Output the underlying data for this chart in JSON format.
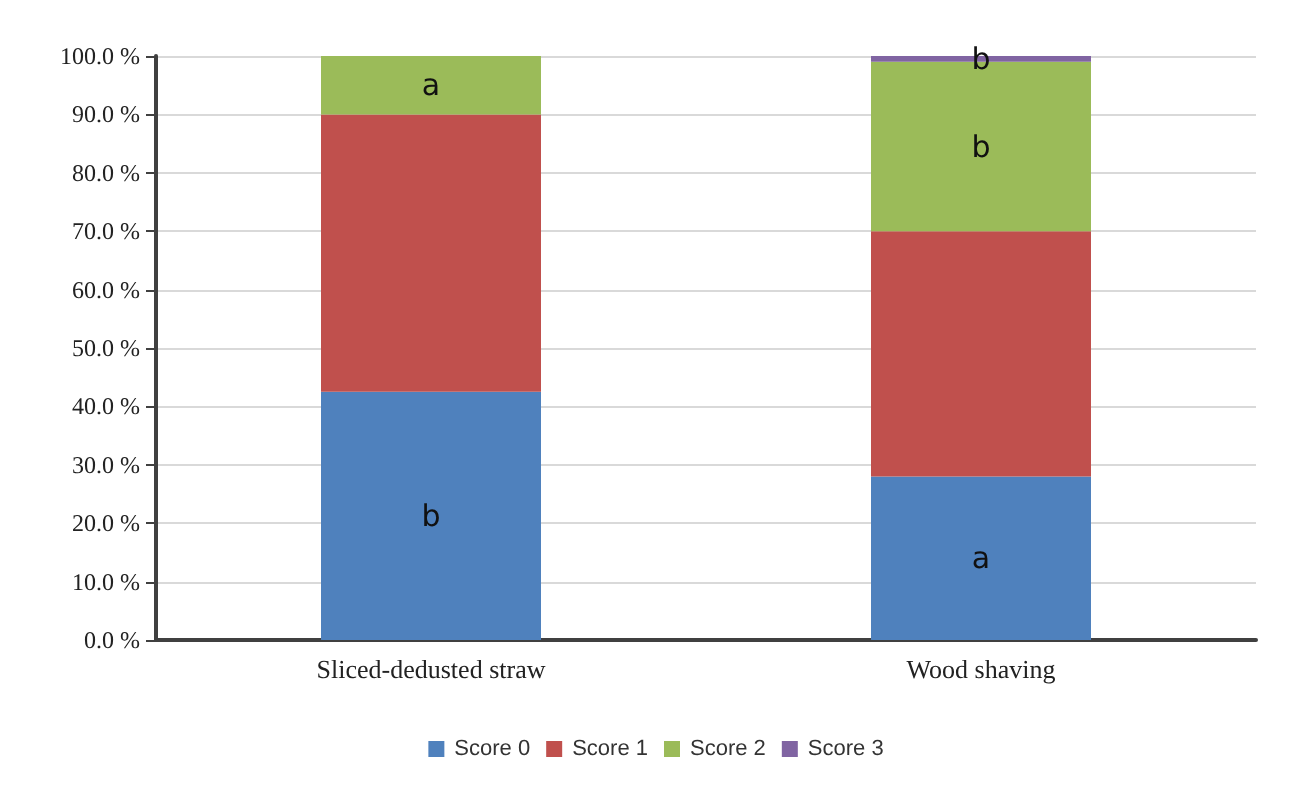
{
  "chart_data": {
    "type": "bar",
    "stacked": true,
    "categories": [
      "Sliced-dedusted straw",
      "Wood shaving"
    ],
    "series": [
      {
        "name": "Score 0",
        "color": "#4f81bd",
        "values": [
          42.5,
          28
        ],
        "value_labels": [
          "b",
          "a"
        ]
      },
      {
        "name": "Score 1",
        "color": "#c0504d",
        "values": [
          47.5,
          42
        ],
        "value_labels": [
          null,
          null
        ]
      },
      {
        "name": "Score 2",
        "color": "#9bbb59",
        "values": [
          10,
          29
        ],
        "value_labels": [
          "a",
          "b"
        ]
      },
      {
        "name": "Score 3",
        "color": "#8064a2",
        "values": [
          0,
          1
        ],
        "value_labels": [
          null,
          "b"
        ]
      }
    ],
    "ylim": [
      0,
      100
    ],
    "yticks": [
      {
        "value": 0,
        "label": "0.0 %"
      },
      {
        "value": 10,
        "label": "10.0 %"
      },
      {
        "value": 20,
        "label": "20.0 %"
      },
      {
        "value": 30,
        "label": "30.0 %"
      },
      {
        "value": 40,
        "label": "40.0 %"
      },
      {
        "value": 50,
        "label": "50.0 %"
      },
      {
        "value": 60,
        "label": "60.0 %"
      },
      {
        "value": 70,
        "label": "70.0 %"
      },
      {
        "value": 80,
        "label": "80.0 %"
      },
      {
        "value": 90,
        "label": "90.0 %"
      },
      {
        "value": 100,
        "label": "100.0 %"
      }
    ],
    "grid": "y",
    "legend": "bottom"
  }
}
